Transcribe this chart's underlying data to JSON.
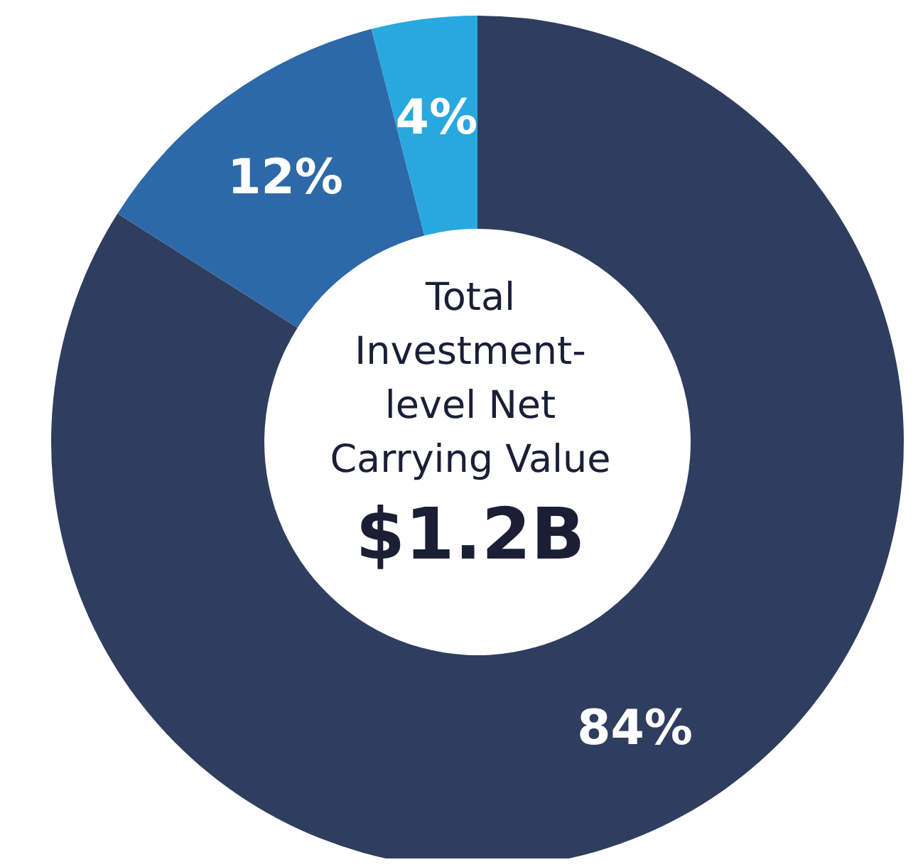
{
  "chart_data": {
    "type": "donut",
    "title": "Total Investment-level Net Carrying Value",
    "annotations": [
      "$1.2B"
    ],
    "categories": [
      null,
      null,
      null
    ],
    "values": [
      84,
      12,
      4
    ],
    "value_labels": [
      "84%",
      "12%",
      "4%"
    ],
    "colors": [
      "#2f3e5f",
      "#2d69a8",
      "#29a8e0"
    ]
  }
}
